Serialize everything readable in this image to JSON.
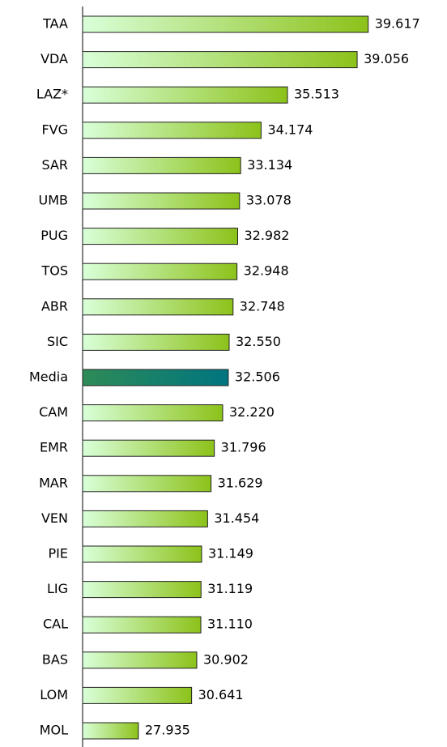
{
  "chart_data": {
    "type": "hbar",
    "categories": [
      "TAA",
      "VDA",
      "LAZ*",
      "FVG",
      "SAR",
      "UMB",
      "PUG",
      "TOS",
      "ABR",
      "SIC",
      "Media",
      "CAM",
      "EMR",
      "MAR",
      "VEN",
      "PIE",
      "LIG",
      "CAL",
      "BAS",
      "LOM",
      "MOL"
    ],
    "values": [
      39.617,
      39.056,
      35.513,
      34.174,
      33.134,
      33.078,
      32.982,
      32.948,
      32.748,
      32.55,
      32.506,
      32.22,
      31.796,
      31.629,
      31.454,
      31.149,
      31.119,
      31.11,
      30.902,
      30.641,
      27.935
    ],
    "value_labels": [
      "39.617",
      "39.056",
      "35.513",
      "34.174",
      "33.134",
      "33.078",
      "32.982",
      "32.948",
      "32.748",
      "32.550",
      "32.506",
      "32.220",
      "31.796",
      "31.629",
      "31.454",
      "31.149",
      "31.119",
      "31.110",
      "30.902",
      "30.641",
      "27.935"
    ],
    "colors": [
      [
        "#d9ffd9",
        "#8cc21a"
      ],
      [
        "#d9ffd9",
        "#8cc21a"
      ],
      [
        "#d9ffd9",
        "#8cc21a"
      ],
      [
        "#d9ffd9",
        "#8cc21a"
      ],
      [
        "#d9ffd9",
        "#8cc21a"
      ],
      [
        "#d9ffd9",
        "#8cc21a"
      ],
      [
        "#d9ffd9",
        "#8cc21a"
      ],
      [
        "#d9ffd9",
        "#8cc21a"
      ],
      [
        "#d9ffd9",
        "#8cc21a"
      ],
      [
        "#d9ffd9",
        "#8cc21a"
      ],
      [
        "#2e8b57",
        "#007580"
      ],
      [
        "#d9ffd9",
        "#8cc21a"
      ],
      [
        "#d9ffd9",
        "#8cc21a"
      ],
      [
        "#d9ffd9",
        "#8cc21a"
      ],
      [
        "#d9ffd9",
        "#8cc21a"
      ],
      [
        "#d9ffd9",
        "#8cc21a"
      ],
      [
        "#d9ffd9",
        "#8cc21a"
      ],
      [
        "#d9ffd9",
        "#8cc21a"
      ],
      [
        "#d9ffd9",
        "#8cc21a"
      ],
      [
        "#d9ffd9",
        "#8cc21a"
      ],
      [
        "#d9ffd9",
        "#8cc21a"
      ]
    ],
    "xlim": [
      25.1,
      40
    ]
  }
}
